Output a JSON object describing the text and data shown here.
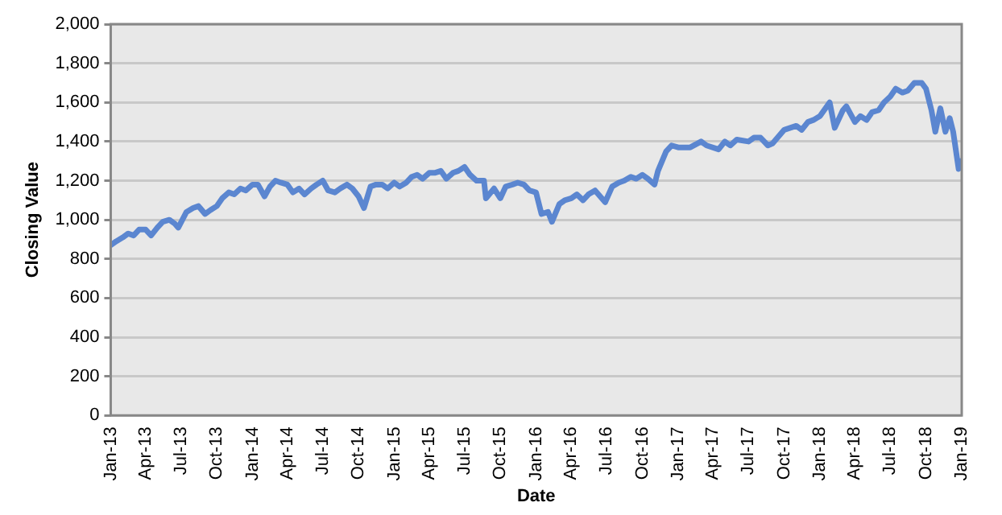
{
  "chart_data": {
    "type": "line",
    "xlabel": "Date",
    "ylabel": "Closing Value",
    "x": [
      "2013-01-01",
      "2013-01-15",
      "2013-02-01",
      "2013-02-15",
      "2013-03-01",
      "2013-03-15",
      "2013-04-01",
      "2013-04-15",
      "2013-05-01",
      "2013-05-15",
      "2013-06-01",
      "2013-06-15",
      "2013-06-24",
      "2013-07-15",
      "2013-08-01",
      "2013-08-15",
      "2013-09-01",
      "2013-09-15",
      "2013-10-01",
      "2013-10-15",
      "2013-11-01",
      "2013-11-15",
      "2013-12-01",
      "2013-12-15",
      "2014-01-01",
      "2014-01-15",
      "2014-02-01",
      "2014-02-15",
      "2014-03-01",
      "2014-03-15",
      "2014-04-01",
      "2014-04-15",
      "2014-05-01",
      "2014-05-15",
      "2014-06-01",
      "2014-06-15",
      "2014-07-01",
      "2014-07-15",
      "2014-08-01",
      "2014-08-15",
      "2014-09-01",
      "2014-09-15",
      "2014-10-01",
      "2014-10-15",
      "2014-11-01",
      "2014-11-15",
      "2014-12-01",
      "2014-12-15",
      "2015-01-01",
      "2015-01-15",
      "2015-02-01",
      "2015-02-15",
      "2015-03-01",
      "2015-03-15",
      "2015-04-01",
      "2015-04-15",
      "2015-05-01",
      "2015-05-15",
      "2015-06-01",
      "2015-06-15",
      "2015-07-01",
      "2015-07-15",
      "2015-08-01",
      "2015-08-20",
      "2015-08-25",
      "2015-09-15",
      "2015-10-01",
      "2015-10-15",
      "2015-11-01",
      "2015-11-15",
      "2015-12-01",
      "2015-12-15",
      "2016-01-01",
      "2016-01-15",
      "2016-02-01",
      "2016-02-11",
      "2016-03-01",
      "2016-03-15",
      "2016-04-01",
      "2016-04-15",
      "2016-05-01",
      "2016-05-15",
      "2016-06-01",
      "2016-06-27",
      "2016-07-15",
      "2016-08-01",
      "2016-08-15",
      "2016-09-01",
      "2016-09-15",
      "2016-10-01",
      "2016-10-15",
      "2016-11-01",
      "2016-11-10",
      "2016-12-01",
      "2016-12-15",
      "2017-01-01",
      "2017-02-01",
      "2017-03-01",
      "2017-03-15",
      "2017-04-15",
      "2017-05-01",
      "2017-05-15",
      "2017-06-01",
      "2017-07-01",
      "2017-07-15",
      "2017-08-01",
      "2017-08-20",
      "2017-09-01",
      "2017-10-01",
      "2017-11-01",
      "2017-11-15",
      "2017-12-01",
      "2017-12-15",
      "2018-01-01",
      "2018-01-26",
      "2018-02-08",
      "2018-03-01",
      "2018-03-10",
      "2018-04-01",
      "2018-04-15",
      "2018-05-01",
      "2018-05-15",
      "2018-06-01",
      "2018-06-15",
      "2018-07-01",
      "2018-07-15",
      "2018-08-01",
      "2018-08-15",
      "2018-09-01",
      "2018-09-20",
      "2018-10-01",
      "2018-10-15",
      "2018-10-25",
      "2018-11-07",
      "2018-11-20",
      "2018-12-01",
      "2018-12-10",
      "2018-12-24",
      "2018-12-31"
    ],
    "series": [
      {
        "color": "#5b86d0",
        "values": [
          870,
          890,
          910,
          930,
          920,
          950,
          950,
          920,
          960,
          990,
          1000,
          980,
          960,
          1040,
          1060,
          1070,
          1030,
          1050,
          1070,
          1110,
          1140,
          1130,
          1160,
          1150,
          1180,
          1180,
          1120,
          1170,
          1200,
          1190,
          1180,
          1140,
          1160,
          1130,
          1160,
          1180,
          1200,
          1150,
          1140,
          1160,
          1180,
          1160,
          1120,
          1060,
          1170,
          1180,
          1180,
          1160,
          1190,
          1170,
          1190,
          1220,
          1230,
          1210,
          1240,
          1240,
          1250,
          1210,
          1240,
          1250,
          1270,
          1230,
          1200,
          1200,
          1110,
          1160,
          1110,
          1170,
          1180,
          1190,
          1180,
          1150,
          1140,
          1030,
          1040,
          990,
          1080,
          1100,
          1110,
          1130,
          1100,
          1130,
          1150,
          1090,
          1170,
          1190,
          1200,
          1220,
          1210,
          1230,
          1210,
          1180,
          1250,
          1350,
          1380,
          1370,
          1370,
          1400,
          1380,
          1360,
          1400,
          1380,
          1410,
          1400,
          1420,
          1420,
          1380,
          1390,
          1460,
          1480,
          1460,
          1500,
          1510,
          1530,
          1600,
          1470,
          1560,
          1580,
          1500,
          1530,
          1510,
          1550,
          1560,
          1600,
          1630,
          1670,
          1650,
          1660,
          1700,
          1700,
          1670,
          1560,
          1450,
          1570,
          1450,
          1520,
          1450,
          1260,
          1300
        ]
      }
    ],
    "xlim": [
      "2013-01-01",
      "2019-01-01"
    ],
    "xticks": [
      {
        "value": "2013-01-01",
        "label": "Jan-13"
      },
      {
        "value": "2013-04-01",
        "label": "Apr-13"
      },
      {
        "value": "2013-07-01",
        "label": "Jul-13"
      },
      {
        "value": "2013-10-01",
        "label": "Oct-13"
      },
      {
        "value": "2014-01-01",
        "label": "Jan-14"
      },
      {
        "value": "2014-04-01",
        "label": "Apr-14"
      },
      {
        "value": "2014-07-01",
        "label": "Jul-14"
      },
      {
        "value": "2014-10-01",
        "label": "Oct-14"
      },
      {
        "value": "2015-01-01",
        "label": "Jan-15"
      },
      {
        "value": "2015-04-01",
        "label": "Apr-15"
      },
      {
        "value": "2015-07-01",
        "label": "Jul-15"
      },
      {
        "value": "2015-10-01",
        "label": "Oct-15"
      },
      {
        "value": "2016-01-01",
        "label": "Jan-16"
      },
      {
        "value": "2016-04-01",
        "label": "Apr-16"
      },
      {
        "value": "2016-07-01",
        "label": "Jul-16"
      },
      {
        "value": "2016-10-01",
        "label": "Oct-16"
      },
      {
        "value": "2017-01-01",
        "label": "Jan-17"
      },
      {
        "value": "2017-04-01",
        "label": "Apr-17"
      },
      {
        "value": "2017-07-01",
        "label": "Jul-17"
      },
      {
        "value": "2017-10-01",
        "label": "Oct-17"
      },
      {
        "value": "2018-01-01",
        "label": "Jan-18"
      },
      {
        "value": "2018-04-01",
        "label": "Apr-18"
      },
      {
        "value": "2018-07-01",
        "label": "Jul-18"
      },
      {
        "value": "2018-10-01",
        "label": "Oct-18"
      },
      {
        "value": "2019-01-01",
        "label": "Jan-19"
      }
    ],
    "ylim": [
      0,
      2000
    ],
    "yticks": [
      {
        "value": 0,
        "label": "0"
      },
      {
        "value": 200,
        "label": "200"
      },
      {
        "value": 400,
        "label": "400"
      },
      {
        "value": 600,
        "label": "600"
      },
      {
        "value": 800,
        "label": "800"
      },
      {
        "value": 1000,
        "label": "1,000"
      },
      {
        "value": 1200,
        "label": "1,200"
      },
      {
        "value": 1400,
        "label": "1,400"
      },
      {
        "value": 1600,
        "label": "1,600"
      },
      {
        "value": 1800,
        "label": "1,800"
      },
      {
        "value": 2000,
        "label": "2,000"
      }
    ],
    "grid": "y",
    "legend": false,
    "marker": "none",
    "line_style": "solid"
  }
}
